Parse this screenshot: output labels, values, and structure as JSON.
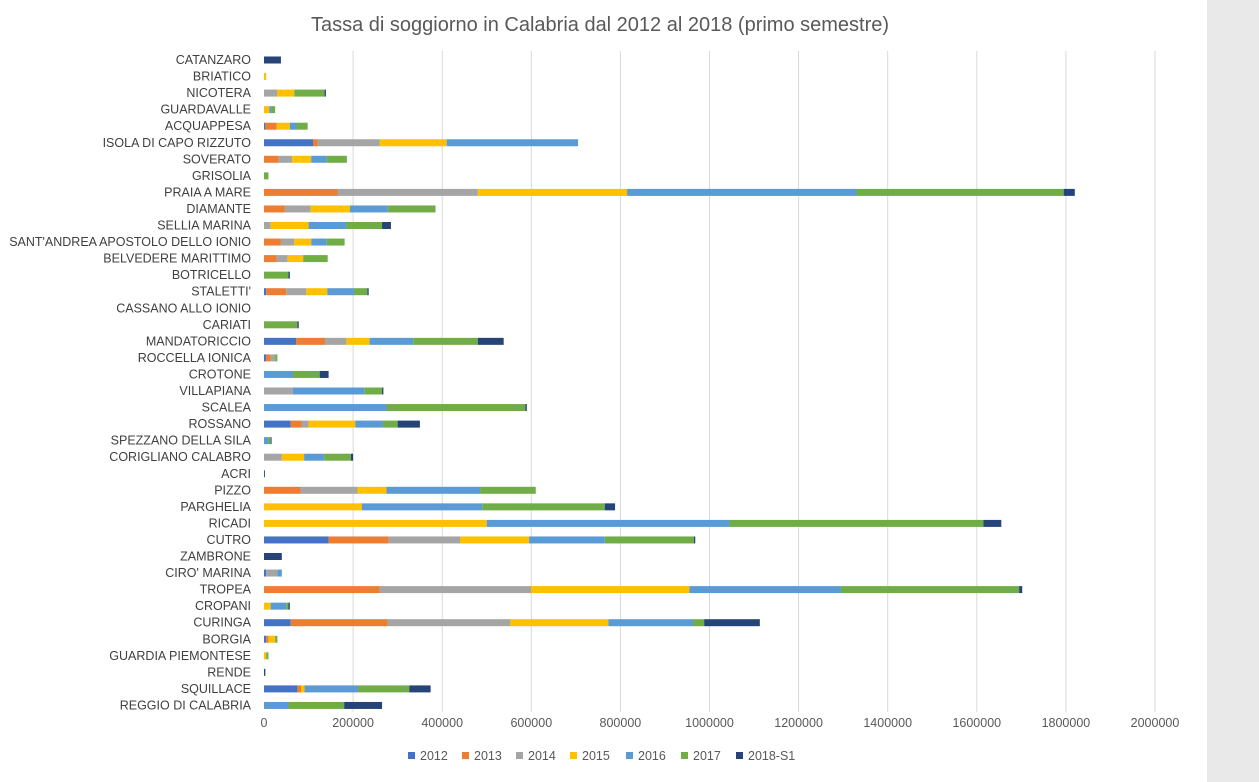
{
  "chart_data": {
    "type": "bar",
    "orientation": "horizontal",
    "stacked": true,
    "title": "Tassa di soggiorno in Calabria dal 2012 al 2018 (primo semestre)",
    "xlim": [
      0,
      2000000
    ],
    "xticks": [
      0,
      200000,
      400000,
      600000,
      800000,
      1000000,
      1200000,
      1400000,
      1600000,
      1800000,
      2000000
    ],
    "xtick_labels": [
      "0",
      "200000",
      "400000",
      "600000",
      "800000",
      "1000000",
      "1200000",
      "1400000",
      "1600000",
      "1800000",
      "2000000"
    ],
    "grid": true,
    "legend_position": "bottom",
    "categories": [
      "CATANZARO",
      "BRIATICO",
      "NICOTERA",
      "GUARDAVALLE",
      "ACQUAPPESA",
      "ISOLA DI CAPO RIZZUTO",
      "SOVERATO",
      "GRISOLIA",
      "PRAIA A MARE",
      "DIAMANTE",
      "SELLIA MARINA",
      "SANT'ANDREA APOSTOLO DELLO IONIO",
      "BELVEDERE MARITTIMO",
      "BOTRICELLO",
      "STALETTI'",
      "CASSANO ALLO IONIO",
      "CARIATI",
      "MANDATORICCIO",
      "ROCCELLA IONICA",
      "CROTONE",
      "VILLAPIANA",
      "SCALEA",
      "ROSSANO",
      "SPEZZANO DELLA SILA",
      "CORIGLIANO CALABRO",
      "ACRI",
      "PIZZO",
      "PARGHELIA",
      "RICADI",
      "CUTRO",
      "ZAMBRONE",
      "CIRO' MARINA",
      "TROPEA",
      "CROPANI",
      "CURINGA",
      "BORGIA",
      "GUARDIA PIEMONTESE",
      "RENDE",
      "SQUILLACE",
      "REGGIO DI CALABRIA"
    ],
    "series": [
      {
        "name": "2012",
        "color": "#4472c4",
        "values": [
          0,
          0,
          0,
          0,
          3000,
          110000,
          0,
          0,
          0,
          0,
          0,
          0,
          0,
          0,
          5000,
          0,
          0,
          72000,
          5000,
          0,
          0,
          0,
          60000,
          0,
          0,
          0,
          0,
          0,
          0,
          145000,
          0,
          5000,
          0,
          0,
          60000,
          5000,
          0,
          0,
          75000,
          0
        ]
      },
      {
        "name": "2013",
        "color": "#ed7d31",
        "values": [
          0,
          0,
          0,
          0,
          25000,
          10000,
          33000,
          0,
          165000,
          47000,
          0,
          38000,
          28000,
          0,
          45000,
          0,
          0,
          65000,
          10000,
          0,
          0,
          0,
          25000,
          0,
          0,
          0,
          82000,
          0,
          0,
          135000,
          0,
          0,
          260000,
          0,
          218000,
          5000,
          0,
          0,
          8000,
          0
        ]
      },
      {
        "name": "2014",
        "color": "#a5a5a5",
        "values": [
          0,
          0,
          30000,
          0,
          0,
          140000,
          30000,
          0,
          315000,
          58000,
          15000,
          30000,
          25000,
          0,
          45000,
          0,
          0,
          48000,
          10000,
          0,
          65000,
          0,
          15000,
          0,
          40000,
          0,
          128000,
          0,
          0,
          160000,
          0,
          25000,
          340000,
          0,
          275000,
          0,
          0,
          0,
          0,
          0
        ]
      },
      {
        "name": "2015",
        "color": "#ffc000",
        "values": [
          0,
          5000,
          38000,
          12000,
          30000,
          150000,
          43000,
          0,
          335000,
          88000,
          85000,
          38000,
          35000,
          0,
          47000,
          0,
          0,
          52000,
          0,
          0,
          0,
          0,
          105000,
          0,
          50000,
          0,
          65000,
          220000,
          500000,
          155000,
          0,
          0,
          355000,
          15000,
          220000,
          15000,
          5000,
          0,
          8000,
          0
        ]
      },
      {
        "name": "2016",
        "color": "#5b9bd5",
        "values": [
          0,
          0,
          0,
          5000,
          15000,
          295000,
          35000,
          0,
          515000,
          85000,
          85000,
          35000,
          0,
          0,
          60000,
          0,
          0,
          98000,
          0,
          65000,
          160000,
          275000,
          62000,
          10000,
          45000,
          0,
          210000,
          270000,
          545000,
          170000,
          0,
          10000,
          340000,
          35000,
          190000,
          0,
          0,
          0,
          120000,
          55000
        ]
      },
      {
        "name": "2017",
        "color": "#70ad47",
        "values": [
          0,
          0,
          68000,
          8000,
          25000,
          0,
          45000,
          10000,
          465000,
          107000,
          80000,
          40000,
          55000,
          55000,
          30000,
          0,
          75000,
          145000,
          5000,
          60000,
          40000,
          312000,
          33000,
          5000,
          60000,
          0,
          125000,
          275000,
          570000,
          200000,
          0,
          0,
          400000,
          5000,
          25000,
          5000,
          5000,
          0,
          115000,
          125000
        ]
      },
      {
        "name": "2018-S1",
        "color": "#264478",
        "values": [
          38000,
          0,
          3000,
          0,
          0,
          0,
          0,
          0,
          25000,
          0,
          20000,
          0,
          0,
          3000,
          3000,
          0,
          3000,
          58000,
          0,
          20000,
          3000,
          3000,
          50000,
          2000,
          5000,
          2000,
          0,
          23000,
          40000,
          3000,
          40000,
          0,
          7000,
          3000,
          125000,
          0,
          0,
          3000,
          48000,
          85000
        ]
      }
    ]
  }
}
